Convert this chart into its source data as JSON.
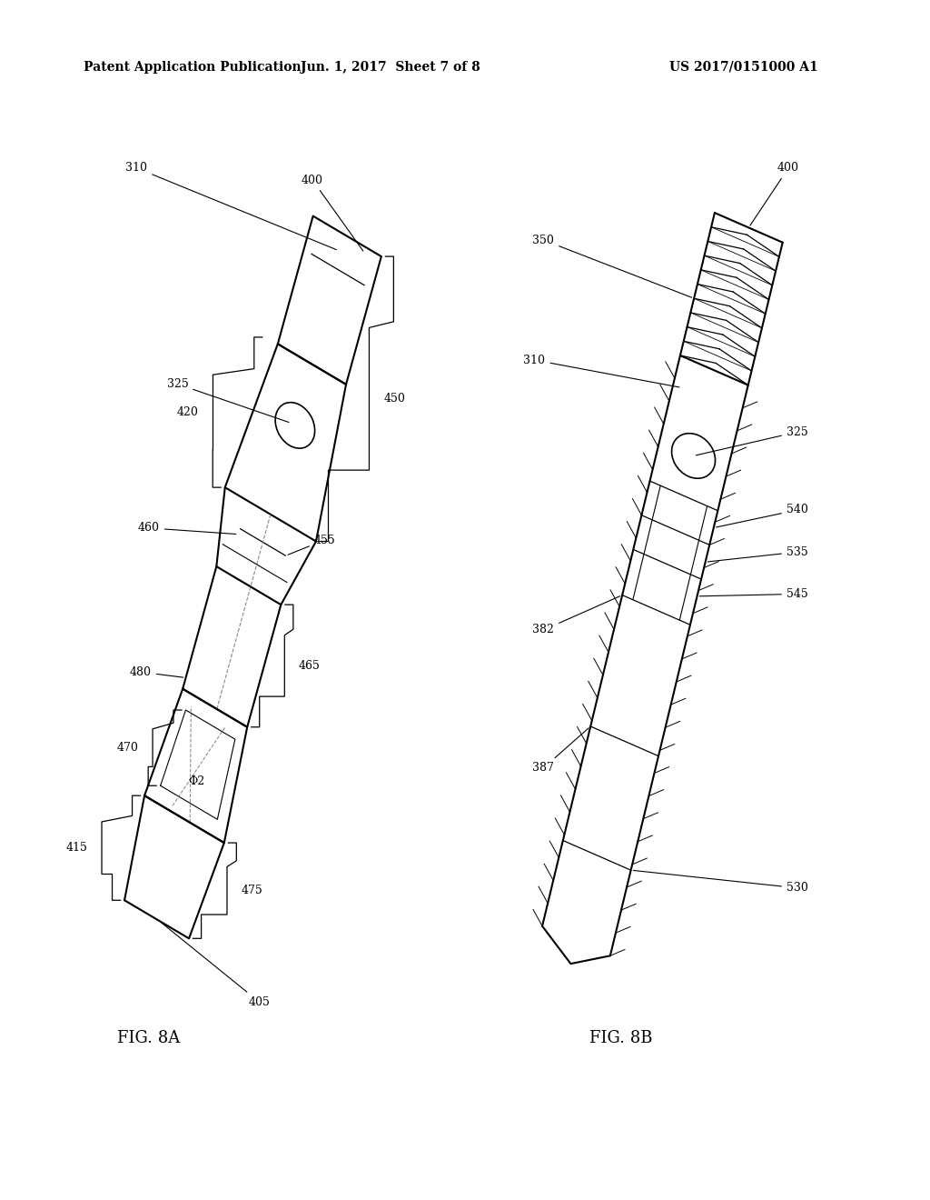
{
  "bg_color": "#ffffff",
  "header_left": "Patent Application Publication",
  "header_center": "Jun. 1, 2017  Sheet 7 of 8",
  "header_right": "US 2017/0151000 A1",
  "fig_label_A": "FIG. 8A",
  "fig_label_B": "FIG. 8B"
}
